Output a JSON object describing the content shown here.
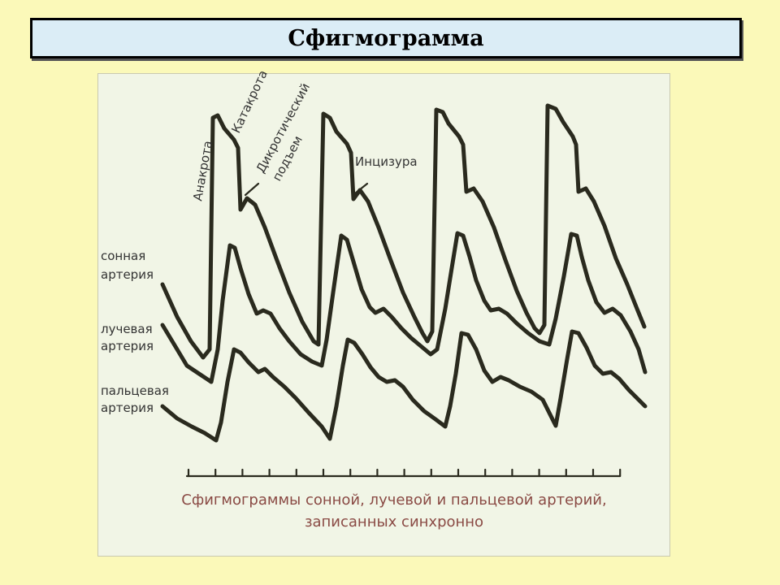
{
  "header": {
    "title": "Сфигмограмма"
  },
  "figure": {
    "annotations": {
      "anakrota": "Анакрота",
      "katakrota": "Катакрота",
      "dicrotic_line1": "Дикротический",
      "dicrotic_line2": "подъем",
      "incisura": "Инцизура"
    },
    "traces": [
      {
        "line1": "сонная",
        "line2": "артерия"
      },
      {
        "line1": "лучевая",
        "line2": "артерия"
      },
      {
        "line1": "пальцевая",
        "line2": "артерия"
      }
    ],
    "caption": {
      "line1": "Сфигмограммы сонной, лучевой и пальцевой артерий,",
      "line2": "записанных синхронно"
    },
    "colors": {
      "trace": "#2a2a1e",
      "caption": "#8a4a44",
      "panel": "#f1f5e6",
      "page": "#fbf9b9"
    }
  }
}
